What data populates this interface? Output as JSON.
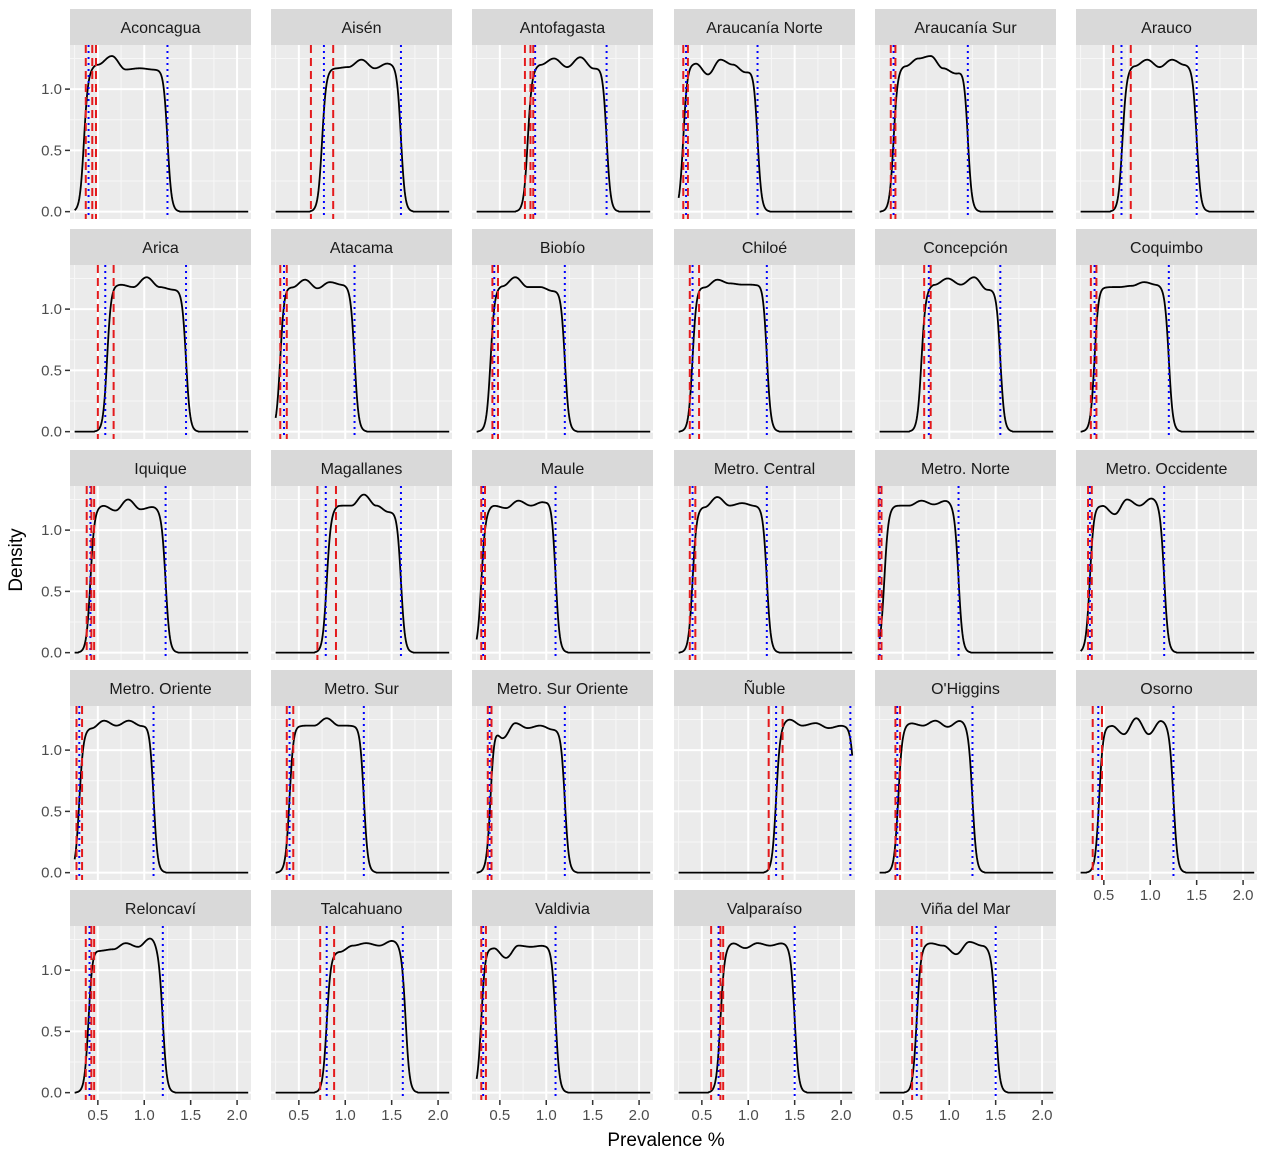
{
  "chart_data": {
    "type": "line",
    "xlabel": "Prevalence %",
    "ylabel": "Density",
    "xlim": [
      0.2,
      2.15
    ],
    "ylim": [
      -0.06,
      1.36
    ],
    "x_ticks": [
      0.5,
      1.0,
      1.5,
      2.0
    ],
    "x_tick_labels": [
      "0.5",
      "1.0",
      "1.5",
      "2.0"
    ],
    "y_ticks": [
      0.0,
      0.5,
      1.0
    ],
    "y_tick_labels": [
      "0.0",
      "0.5",
      "1.0"
    ],
    "grid": true,
    "ncol": 6,
    "line_styles": {
      "density": {
        "color": "#000000",
        "style": "solid"
      },
      "red_lines": {
        "color": "#e41a1c",
        "style": "dashed"
      },
      "blue_lines": {
        "color": "#0000ff",
        "style": "dotted"
      }
    },
    "panels": [
      {
        "name": "Aconcagua",
        "lo": 0.35,
        "hi": 1.25,
        "bumps": [
          1.15,
          1.2,
          1.27,
          1.16,
          1.17,
          1.16,
          1.17
        ],
        "red": [
          0.37,
          0.44,
          0.48
        ],
        "blue": [
          0.4,
          1.25
        ]
      },
      {
        "name": "Aisén",
        "lo": 0.75,
        "hi": 1.6,
        "bumps": [
          1.15,
          1.17,
          1.18,
          1.24,
          1.17,
          1.21,
          1.2
        ],
        "red": [
          0.63,
          0.87
        ],
        "blue": [
          0.77,
          1.6
        ]
      },
      {
        "name": "Antofagasta",
        "lo": 0.8,
        "hi": 1.65,
        "bumps": [
          1.15,
          1.2,
          1.25,
          1.18,
          1.26,
          1.17,
          1.2
        ],
        "red": [
          0.77,
          0.83,
          0.86
        ],
        "blue": [
          0.88,
          1.65
        ]
      },
      {
        "name": "Araucanía Norte",
        "lo": 0.3,
        "hi": 1.1,
        "bumps": [
          1.2,
          1.21,
          1.12,
          1.24,
          1.2,
          1.14,
          1.19
        ],
        "red": [
          0.3,
          0.35
        ],
        "blue": [
          0.33,
          1.1
        ]
      },
      {
        "name": "Araucanía Sur",
        "lo": 0.4,
        "hi": 1.2,
        "bumps": [
          1.17,
          1.19,
          1.25,
          1.27,
          1.17,
          1.13,
          1.2
        ],
        "red": [
          0.37,
          0.42
        ],
        "blue": [
          0.4,
          1.2
        ]
      },
      {
        "name": "Arauco",
        "lo": 0.7,
        "hi": 1.5,
        "bumps": [
          1.15,
          1.19,
          1.24,
          1.18,
          1.24,
          1.2,
          1.19
        ],
        "red": [
          0.6,
          0.79
        ],
        "blue": [
          0.69,
          1.5
        ]
      },
      {
        "name": "Arica",
        "lo": 0.6,
        "hi": 1.45,
        "bumps": [
          1.2,
          1.2,
          1.18,
          1.26,
          1.18,
          1.16,
          1.17
        ],
        "red": [
          0.5,
          0.67
        ],
        "blue": [
          0.58,
          1.45
        ]
      },
      {
        "name": "Atacama",
        "lo": 0.3,
        "hi": 1.1,
        "bumps": [
          1.2,
          1.18,
          1.24,
          1.17,
          1.22,
          1.2,
          1.19
        ],
        "red": [
          0.3,
          0.37
        ],
        "blue": [
          0.34,
          1.1
        ]
      },
      {
        "name": "Biobío",
        "lo": 0.4,
        "hi": 1.2,
        "bumps": [
          1.17,
          1.19,
          1.26,
          1.18,
          1.18,
          1.15,
          1.17
        ],
        "red": [
          0.42,
          0.48
        ],
        "blue": [
          0.44,
          1.2
        ]
      },
      {
        "name": "Chiloé",
        "lo": 0.4,
        "hi": 1.2,
        "bumps": [
          1.2,
          1.18,
          1.24,
          1.21,
          1.2,
          1.2,
          1.24
        ],
        "red": [
          0.37,
          0.47
        ],
        "blue": [
          0.4,
          1.2
        ]
      },
      {
        "name": "Concepción",
        "lo": 0.7,
        "hi": 1.55,
        "bumps": [
          1.15,
          1.2,
          1.25,
          1.2,
          1.26,
          1.16,
          1.18
        ],
        "red": [
          0.73,
          0.8
        ],
        "blue": [
          0.78,
          1.55
        ]
      },
      {
        "name": "Coquimbo",
        "lo": 0.4,
        "hi": 1.2,
        "bumps": [
          1.2,
          1.18,
          1.18,
          1.19,
          1.22,
          1.2,
          1.18
        ],
        "red": [
          0.36,
          0.42
        ],
        "blue": [
          0.4,
          1.2
        ]
      },
      {
        "name": "Iquique",
        "lo": 0.42,
        "hi": 1.23,
        "bumps": [
          1.18,
          1.2,
          1.16,
          1.25,
          1.17,
          1.19,
          1.16
        ],
        "red": [
          0.38,
          0.43,
          0.46
        ],
        "blue": [
          0.42,
          1.23
        ]
      },
      {
        "name": "Magallanes",
        "lo": 0.8,
        "hi": 1.6,
        "bumps": [
          1.15,
          1.2,
          1.2,
          1.29,
          1.2,
          1.15,
          1.17
        ],
        "red": [
          0.7,
          0.9
        ],
        "blue": [
          0.79,
          1.6
        ]
      },
      {
        "name": "Maule",
        "lo": 0.3,
        "hi": 1.1,
        "bumps": [
          1.15,
          1.2,
          1.18,
          1.24,
          1.2,
          1.23,
          1.27
        ],
        "red": [
          0.3,
          0.34
        ],
        "blue": [
          0.32,
          1.1
        ]
      },
      {
        "name": "Metro. Central",
        "lo": 0.4,
        "hi": 1.2,
        "bumps": [
          1.18,
          1.19,
          1.27,
          1.2,
          1.22,
          1.2,
          1.2
        ],
        "red": [
          0.37,
          0.43
        ],
        "blue": [
          0.4,
          1.2
        ]
      },
      {
        "name": "Metro. Norte",
        "lo": 0.3,
        "hi": 1.1,
        "bumps": [
          1.18,
          1.2,
          1.2,
          1.24,
          1.21,
          1.24,
          1.2
        ],
        "red": [
          0.24,
          0.27
        ],
        "blue": [
          0.25,
          1.1
        ]
      },
      {
        "name": "Metro. Occidente",
        "lo": 0.35,
        "hi": 1.15,
        "bumps": [
          1.22,
          1.2,
          1.13,
          1.25,
          1.2,
          1.26,
          1.22
        ],
        "red": [
          0.33,
          0.37
        ],
        "blue": [
          0.35,
          1.15
        ]
      },
      {
        "name": "Metro. Oriente",
        "lo": 0.3,
        "hi": 1.1,
        "bumps": [
          1.16,
          1.18,
          1.24,
          1.2,
          1.24,
          1.2,
          1.23
        ],
        "red": [
          0.27,
          0.33
        ],
        "blue": [
          0.3,
          1.1
        ]
      },
      {
        "name": "Metro. Sur",
        "lo": 0.4,
        "hi": 1.2,
        "bumps": [
          1.22,
          1.2,
          1.2,
          1.26,
          1.2,
          1.2,
          1.22
        ],
        "red": [
          0.37,
          0.44
        ],
        "blue": [
          0.4,
          1.2
        ]
      },
      {
        "name": "Metro. Sur Oriente",
        "lo": 0.4,
        "hi": 1.2,
        "bumps": [
          1.24,
          1.1,
          1.22,
          1.18,
          1.2,
          1.17,
          1.18
        ],
        "red": [
          0.37,
          0.41
        ],
        "blue": [
          0.39,
          1.2
        ]
      },
      {
        "name": "Ñuble",
        "lo": 1.3,
        "hi": 2.15,
        "bumps": [
          1.2,
          1.25,
          1.2,
          1.22,
          1.18,
          1.2,
          1.2
        ],
        "red": [
          1.22,
          1.37
        ],
        "blue": [
          1.3,
          2.1
        ]
      },
      {
        "name": "O'Higgins",
        "lo": 0.45,
        "hi": 1.25,
        "bumps": [
          1.2,
          1.22,
          1.2,
          1.24,
          1.19,
          1.24,
          1.2
        ],
        "red": [
          0.42,
          0.47
        ],
        "blue": [
          0.44,
          1.25
        ]
      },
      {
        "name": "Osorno",
        "lo": 0.45,
        "hi": 1.25,
        "bumps": [
          1.22,
          1.2,
          1.13,
          1.26,
          1.13,
          1.24,
          1.2
        ],
        "red": [
          0.38,
          0.48
        ],
        "blue": [
          0.44,
          1.25
        ]
      },
      {
        "name": "Reloncaví",
        "lo": 0.4,
        "hi": 1.2,
        "bumps": [
          1.2,
          1.16,
          1.17,
          1.22,
          1.19,
          1.26,
          1.17
        ],
        "red": [
          0.37,
          0.43,
          0.46
        ],
        "blue": [
          0.41,
          1.2
        ]
      },
      {
        "name": "Talcahuano",
        "lo": 0.8,
        "hi": 1.65,
        "bumps": [
          1.13,
          1.15,
          1.2,
          1.22,
          1.2,
          1.24,
          1.2
        ],
        "red": [
          0.73,
          0.88
        ],
        "blue": [
          0.8,
          1.62
        ]
      },
      {
        "name": "Valdivia",
        "lo": 0.3,
        "hi": 1.1,
        "bumps": [
          1.2,
          1.18,
          1.1,
          1.2,
          1.19,
          1.2,
          1.21
        ],
        "red": [
          0.3,
          0.35
        ],
        "blue": [
          0.32,
          1.1
        ]
      },
      {
        "name": "Valparaíso",
        "lo": 0.7,
        "hi": 1.5,
        "bumps": [
          1.18,
          1.22,
          1.18,
          1.22,
          1.2,
          1.22,
          1.2
        ],
        "red": [
          0.6,
          0.7,
          0.73
        ],
        "blue": [
          0.68,
          1.5
        ]
      },
      {
        "name": "Viña del Mar",
        "lo": 0.65,
        "hi": 1.5,
        "bumps": [
          1.2,
          1.22,
          1.2,
          1.13,
          1.23,
          1.2,
          1.16
        ],
        "red": [
          0.6,
          0.7
        ],
        "blue": [
          0.65,
          1.5
        ]
      }
    ]
  }
}
